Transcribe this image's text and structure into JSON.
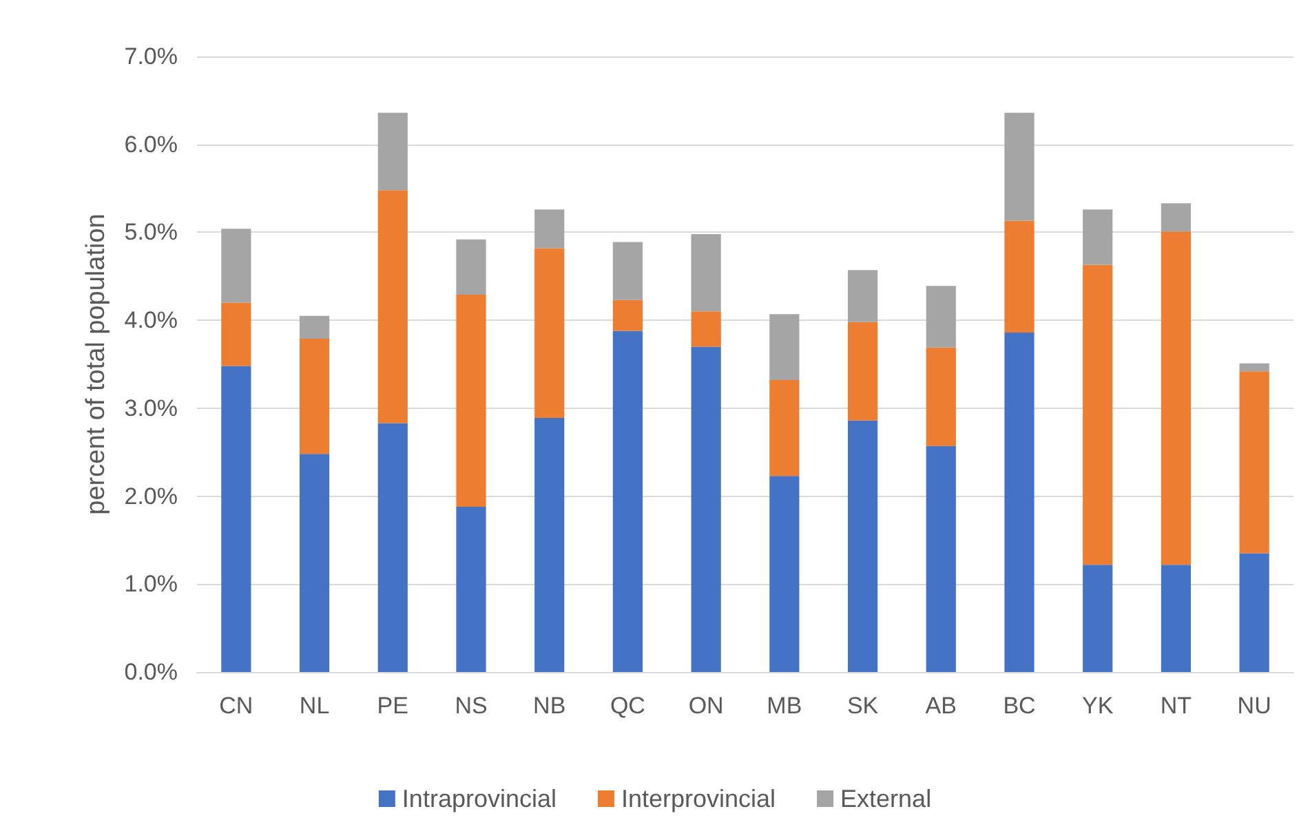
{
  "chart_data": {
    "type": "bar",
    "stacked": true,
    "ylabel": "percent of total population",
    "categories": [
      "CN",
      "NL",
      "PE",
      "NS",
      "NB",
      "QC",
      "ON",
      "MB",
      "SK",
      "AB",
      "BC",
      "YK",
      "NT",
      "NU"
    ],
    "series": [
      {
        "name": "Intraprovincial",
        "color": "#4472c4",
        "values": [
          3.48,
          2.48,
          2.83,
          1.88,
          2.89,
          3.88,
          3.7,
          2.23,
          2.86,
          2.57,
          3.86,
          1.22,
          1.22,
          1.35
        ]
      },
      {
        "name": "Interprovincial",
        "color": "#ed7d31",
        "values": [
          0.72,
          1.31,
          2.65,
          2.41,
          1.93,
          0.35,
          0.4,
          1.09,
          1.12,
          1.12,
          1.27,
          3.41,
          3.79,
          2.07
        ]
      },
      {
        "name": "External",
        "color": "#a5a5a5",
        "values": [
          0.84,
          0.26,
          0.88,
          0.63,
          0.44,
          0.66,
          0.88,
          0.75,
          0.59,
          0.7,
          1.23,
          0.63,
          0.32,
          0.09
        ]
      }
    ],
    "ylim": [
      0,
      7
    ],
    "yticks": [
      {
        "value": 0,
        "label": "0.0%"
      },
      {
        "value": 1,
        "label": "1.0%"
      },
      {
        "value": 2,
        "label": "2.0%"
      },
      {
        "value": 3,
        "label": "3.0%"
      },
      {
        "value": 4,
        "label": "4.0%"
      },
      {
        "value": 5,
        "label": "5.0%"
      },
      {
        "value": 6,
        "label": "6.0%"
      },
      {
        "value": 7,
        "label": "7.0%"
      }
    ],
    "grid": "y",
    "legend": "bottom"
  }
}
